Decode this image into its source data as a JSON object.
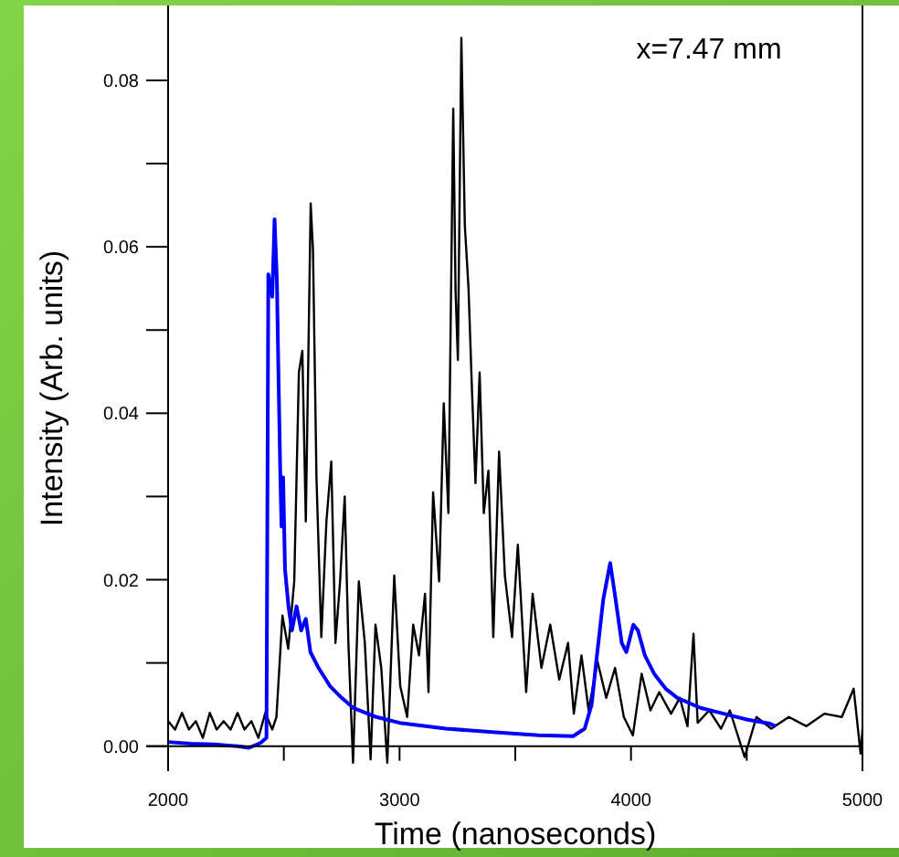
{
  "chart_data": {
    "type": "line",
    "xlabel": "Time (nanoseconds)",
    "ylabel": "Intensity (Arb. units)",
    "annotations": [
      "x=7.47 mm"
    ],
    "xlim": [
      2000,
      5000
    ],
    "ylim": [
      -0.003,
      0.089
    ],
    "xticks": [
      2000,
      {
        "value": 2500,
        "label": null
      },
      3000,
      {
        "value": 3500,
        "label": null
      },
      4000,
      {
        "value": 4500,
        "label": null
      },
      5000
    ],
    "yticks": [
      {
        "value": 0,
        "label": "0.00"
      },
      {
        "value": 0.01,
        "label": null
      },
      {
        "value": 0.02,
        "label": "0.02"
      },
      {
        "value": 0.03,
        "label": null
      },
      {
        "value": 0.04,
        "label": "0.04"
      },
      {
        "value": 0.05,
        "label": null
      },
      {
        "value": 0.06,
        "label": "0.06"
      },
      {
        "value": 0.07,
        "label": null
      },
      {
        "value": 0.08,
        "label": "0.08"
      }
    ],
    "grid": false,
    "marker": "none",
    "line_style": "solid",
    "series": [
      {
        "color": "#000000",
        "x": [
          2000,
          2030,
          2060,
          2090,
          2120,
          2150,
          2180,
          2210,
          2240,
          2270,
          2300,
          2330,
          2360,
          2390,
          2420,
          2450,
          2468,
          2494,
          2519,
          2545,
          2565,
          2580,
          2595,
          2616,
          2626,
          2641,
          2662,
          2684,
          2705,
          2723,
          2743,
          2763,
          2779,
          2799,
          2824,
          2850,
          2875,
          2896,
          2921,
          2947,
          2977,
          3003,
          3033,
          3059,
          3084,
          3110,
          3125,
          3145,
          3171,
          3191,
          3211,
          3232,
          3242,
          3252,
          3267,
          3282,
          3298,
          3313,
          3328,
          3346,
          3364,
          3384,
          3405,
          3430,
          3455,
          3486,
          3511,
          3547,
          3575,
          3613,
          3651,
          3690,
          3728,
          3753,
          3786,
          3817,
          3855,
          3893,
          3931,
          3969,
          4008,
          4046,
          4084,
          4122,
          4173,
          4211,
          4244,
          4270,
          4288,
          4338,
          4389,
          4427,
          4491,
          4542,
          4606,
          4682,
          4758,
          4835,
          4911,
          4962,
          4992,
          5000
        ],
        "values": [
          0.003,
          0.002,
          0.004,
          0.002,
          0.003,
          0.001,
          0.004,
          0.002,
          0.003,
          0.002,
          0.004,
          0.002,
          0.003,
          0.001,
          0.004,
          0.002,
          0.0035,
          0.0157,
          0.0117,
          0.0198,
          0.0449,
          0.0475,
          0.027,
          0.0652,
          0.0596,
          0.0323,
          0.0131,
          0.027,
          0.0342,
          0.0124,
          0.0198,
          0.03,
          0.0124,
          -0.002,
          0.0198,
          0.0124,
          -0.0016,
          0.0146,
          0.0094,
          -0.002,
          0.0205,
          0.0072,
          0.0035,
          0.0146,
          0.0109,
          0.0183,
          0.0065,
          0.0305,
          0.0198,
          0.0412,
          0.028,
          0.0766,
          0.0546,
          0.0464,
          0.0851,
          0.0626,
          0.055,
          0.0427,
          0.0316,
          0.0449,
          0.028,
          0.0331,
          0.0131,
          0.0354,
          0.0205,
          0.0131,
          0.0242,
          0.0065,
          0.0183,
          0.0094,
          0.0146,
          0.008,
          0.0124,
          0.0039,
          0.0109,
          0.0043,
          0.0102,
          0.0058,
          0.0094,
          0.0035,
          0.0013,
          0.0087,
          0.0043,
          0.0065,
          0.0039,
          0.0058,
          0.0024,
          0.0135,
          0.0028,
          0.0043,
          0.0021,
          0.0043,
          -0.0013,
          0.0035,
          0.0021,
          0.0035,
          0.0024,
          0.0039,
          0.0035,
          0.0069,
          -0.0009,
          0.002
        ]
      },
      {
        "color": "#0000ff",
        "x": [
          2000,
          2100,
          2200,
          2300,
          2350,
          2400,
          2425,
          2433,
          2450,
          2460,
          2470,
          2476,
          2485,
          2490,
          2497,
          2505,
          2520,
          2535,
          2555,
          2575,
          2595,
          2615,
          2650,
          2700,
          2750,
          2800,
          2900,
          3000,
          3200,
          3400,
          3600,
          3750,
          3800,
          3830,
          3850,
          3880,
          3910,
          3930,
          3960,
          3980,
          4010,
          4030,
          4060,
          4100,
          4150,
          4200,
          4300,
          4400,
          4500,
          4600,
          4625
        ],
        "values": [
          0.0005,
          0.0003,
          0.0002,
          0,
          -0.0002,
          0.0004,
          0.001,
          0.0567,
          0.054,
          0.0633,
          0.056,
          0.0459,
          0.0323,
          0.0264,
          0.0323,
          0.0213,
          0.0168,
          0.0139,
          0.0168,
          0.0139,
          0.0153,
          0.0113,
          0.0094,
          0.0072,
          0.0058,
          0.0046,
          0.0035,
          0.0028,
          0.0021,
          0.0017,
          0.0013,
          0.0012,
          0.0021,
          0.005,
          0.0102,
          0.0176,
          0.022,
          0.0183,
          0.0124,
          0.0113,
          0.0146,
          0.0139,
          0.0109,
          0.0087,
          0.0069,
          0.0058,
          0.0046,
          0.0039,
          0.0032,
          0.0027,
          0.0024
        ]
      }
    ]
  }
}
